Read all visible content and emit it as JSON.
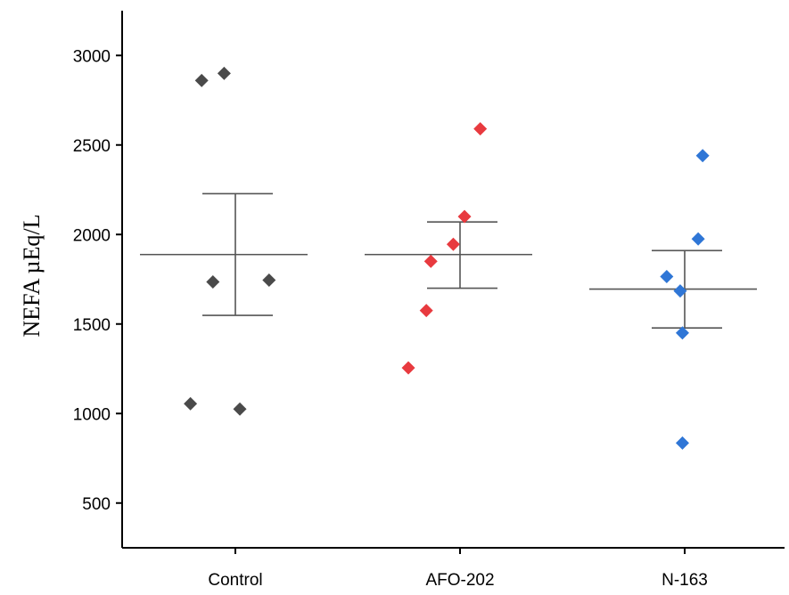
{
  "chart_data": {
    "type": "scatter",
    "title": "",
    "xlabel": "",
    "ylabel": "NEFA µEq/L",
    "ylim": [
      250,
      3250
    ],
    "yticks": [
      500,
      1000,
      1500,
      2000,
      2500,
      3000
    ],
    "grid": false,
    "categories": [
      "Control",
      "AFO-202",
      "N-163"
    ],
    "series": [
      {
        "category": "Control",
        "color": "#4a4a4a",
        "marker": "diamond",
        "points": [
          {
            "offset": -0.15,
            "y": 2860
          },
          {
            "offset": -0.05,
            "y": 2900
          },
          {
            "offset": -0.1,
            "y": 1735
          },
          {
            "offset": 0.15,
            "y": 1745
          },
          {
            "offset": -0.2,
            "y": 1055
          },
          {
            "offset": 0.02,
            "y": 1025
          }
        ],
        "mean": 1888,
        "sd_upper": 2228,
        "sd_lower": 1548
      },
      {
        "category": "AFO-202",
        "color": "#e83a3f",
        "marker": "diamond",
        "points": [
          {
            "offset": 0.09,
            "y": 2590
          },
          {
            "offset": 0.02,
            "y": 2100
          },
          {
            "offset": -0.03,
            "y": 1945
          },
          {
            "offset": -0.13,
            "y": 1850
          },
          {
            "offset": -0.15,
            "y": 1575
          },
          {
            "offset": -0.23,
            "y": 1255
          }
        ],
        "mean": 1888,
        "sd_upper": 2070,
        "sd_lower": 1700
      },
      {
        "category": "N-163",
        "color": "#2f76d6",
        "marker": "diamond",
        "points": [
          {
            "offset": 0.08,
            "y": 2440
          },
          {
            "offset": 0.06,
            "y": 1975
          },
          {
            "offset": -0.08,
            "y": 1765
          },
          {
            "offset": -0.02,
            "y": 1685
          },
          {
            "offset": -0.01,
            "y": 1450
          },
          {
            "offset": -0.01,
            "y": 835
          }
        ],
        "mean": 1695,
        "sd_upper": 1910,
        "sd_lower": 1478
      }
    ]
  }
}
